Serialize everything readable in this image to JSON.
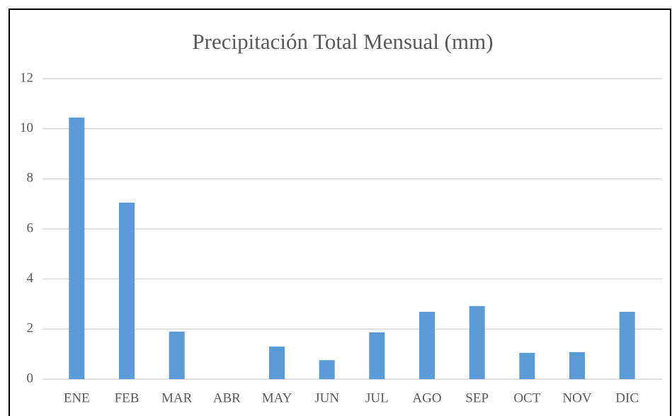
{
  "chart_data": {
    "type": "bar",
    "title": "Precipitación  Total Mensual (mm)",
    "categories": [
      "ENE",
      "FEB",
      "MAR",
      "ABR",
      "MAY",
      "JUN",
      "JUL",
      "AGO",
      "SEP",
      "OCT",
      "NOV",
      "DIC"
    ],
    "values": [
      10.45,
      7.05,
      1.9,
      0,
      1.3,
      0.76,
      1.87,
      2.69,
      2.92,
      1.05,
      1.08,
      2.69
    ],
    "color": "#5b9bd5",
    "ylim": [
      0,
      12
    ],
    "yticks": [
      0,
      2,
      4,
      6,
      8,
      10,
      12
    ],
    "grid": true
  }
}
